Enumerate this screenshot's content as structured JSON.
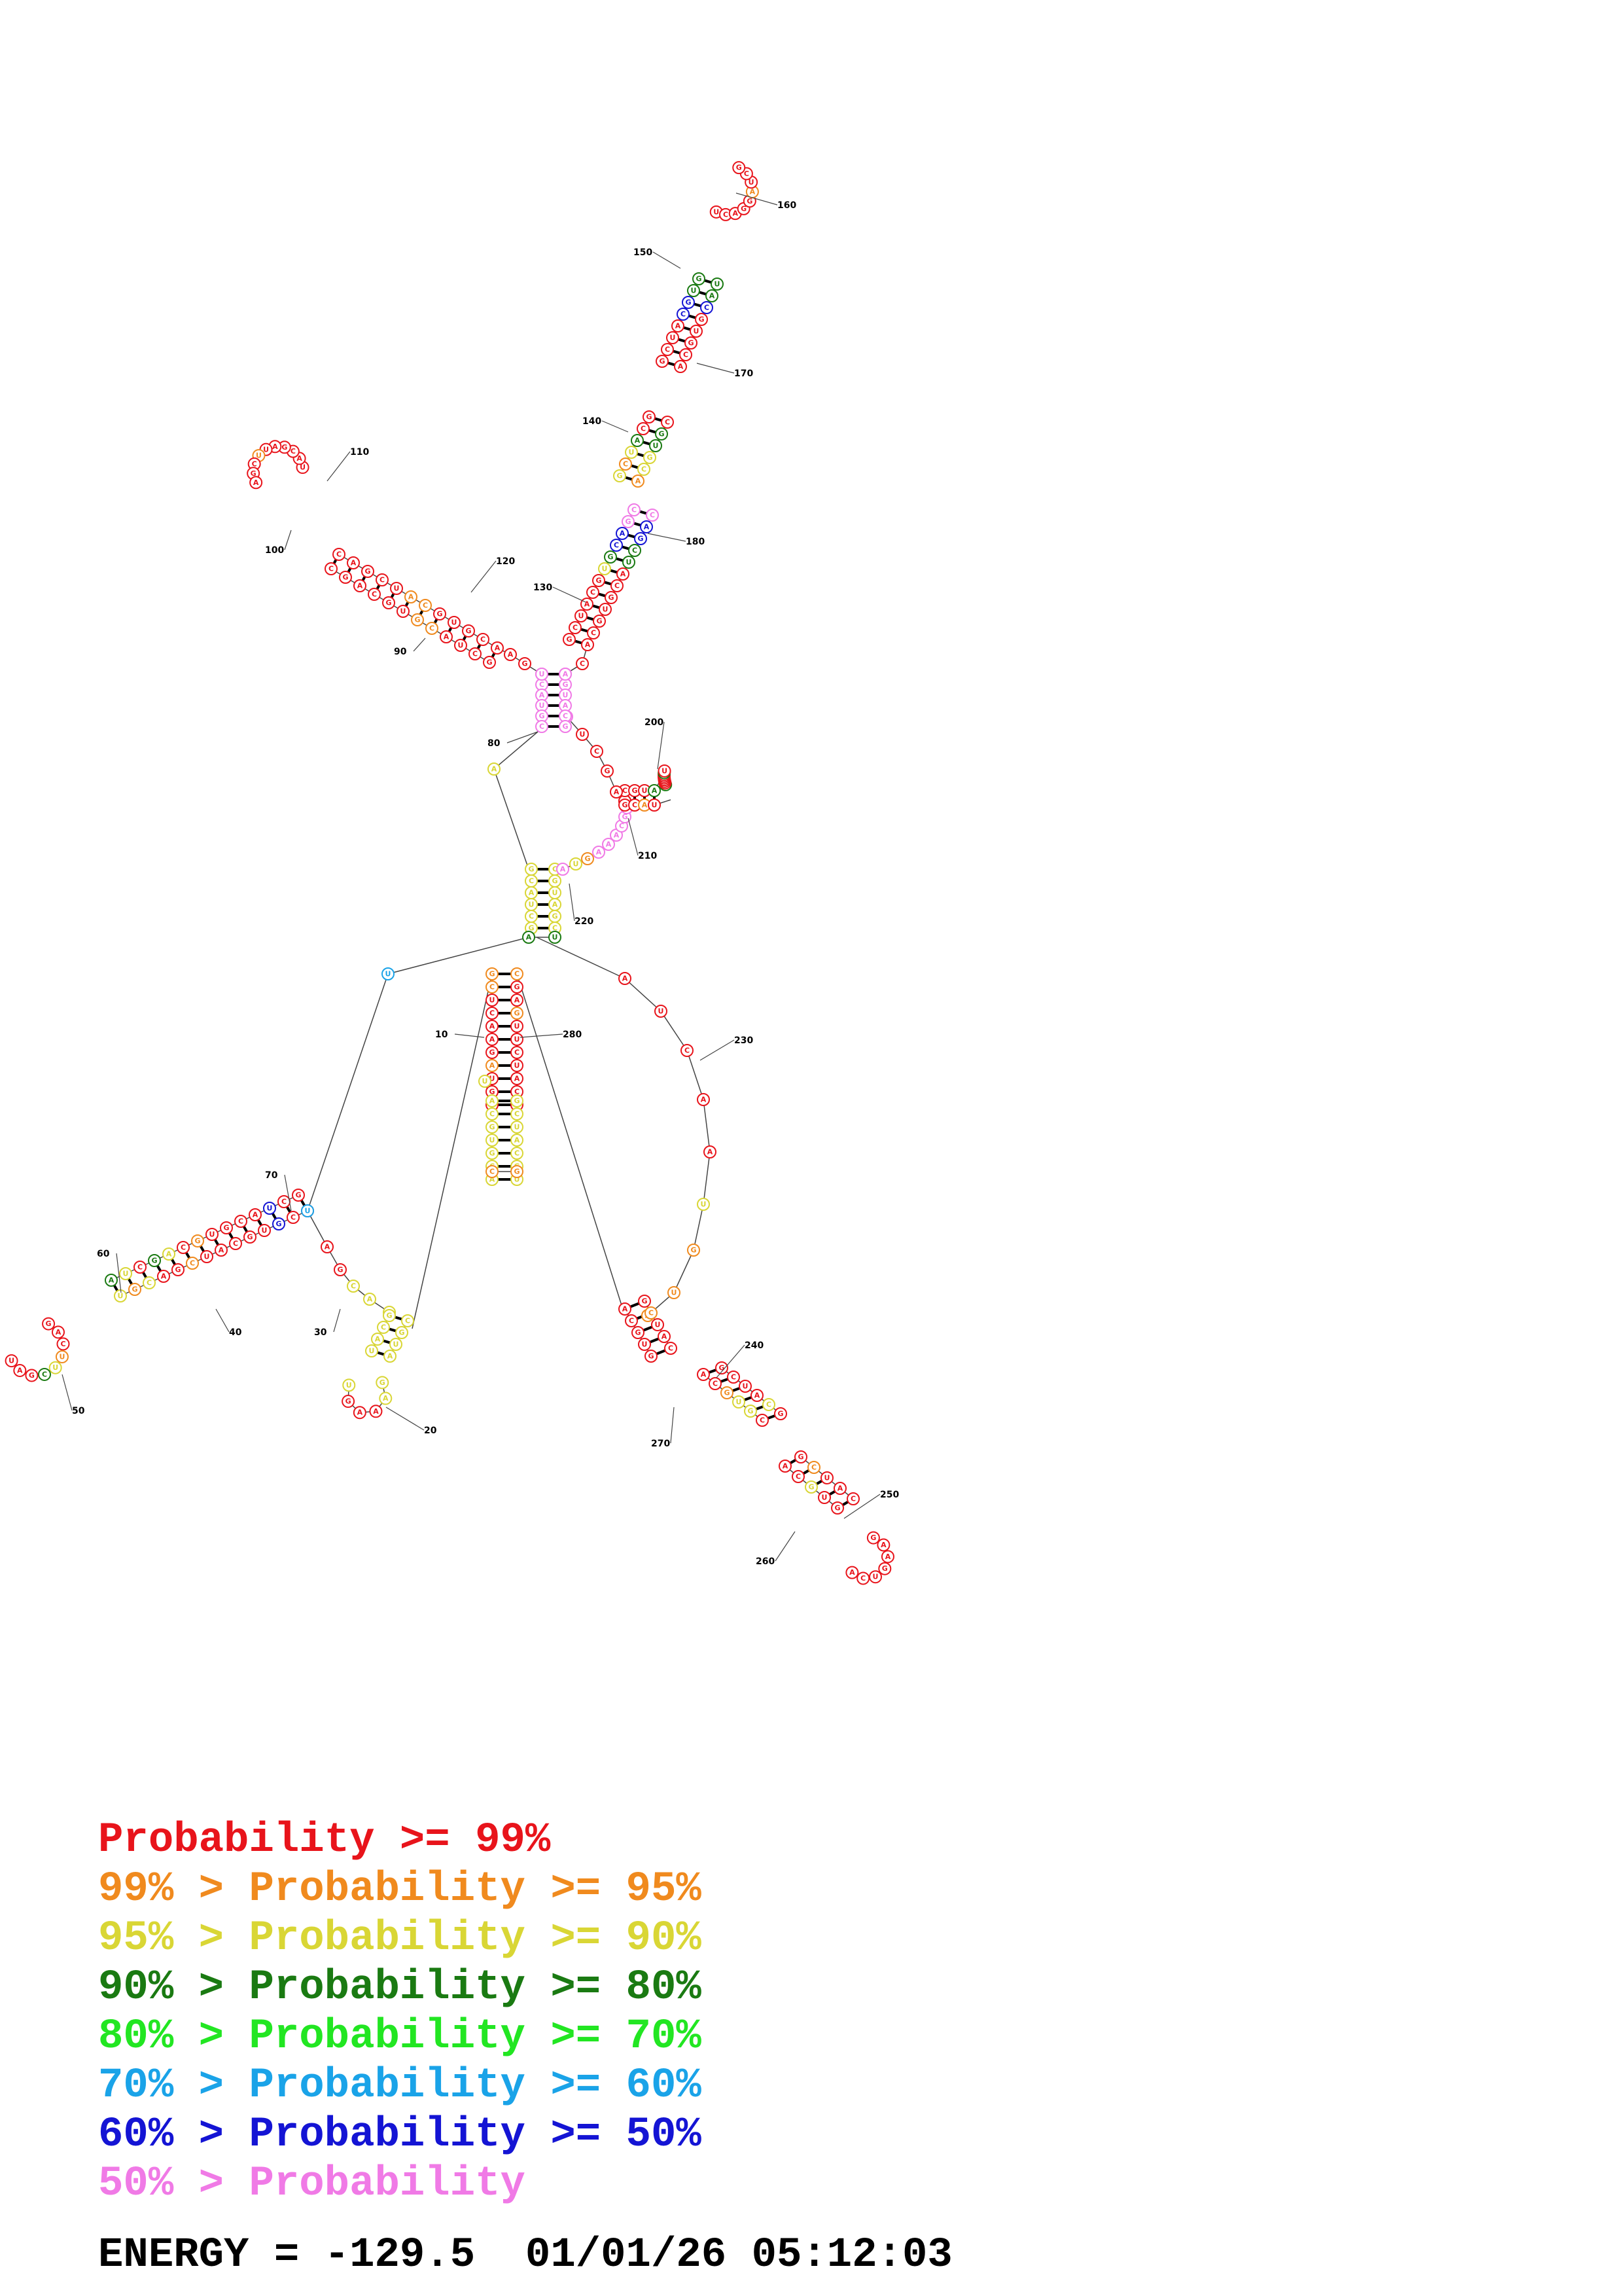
{
  "structure": {
    "position_labels": [
      "10",
      "20",
      "30",
      "40",
      "50",
      "60",
      "70",
      "80",
      "90",
      "100",
      "110",
      "120",
      "130",
      "140",
      "150",
      "160",
      "170",
      "180",
      "200",
      "210",
      "220",
      "230",
      "240",
      "250",
      "260",
      "270",
      "280"
    ],
    "probability_colors": {
      "ge99": "#e8141b",
      "ge95": "#f08a1e",
      "ge90": "#d9d635",
      "ge80": "#1a7a12",
      "ge70": "#22e622",
      "ge60": "#1aa3e8",
      "ge50": "#1414d4",
      "lt50": "#f07ae6"
    }
  },
  "legend": [
    {
      "prefix": "",
      "label": "Probability >= 99%",
      "color": "#e8141b"
    },
    {
      "prefix": "99% > ",
      "label": "Probability >= 95%",
      "color": "#f08a1e"
    },
    {
      "prefix": "95% > ",
      "label": "Probability >= 90%",
      "color": "#d9d635"
    },
    {
      "prefix": "90% > ",
      "label": "Probability >= 80%",
      "color": "#1a7a12"
    },
    {
      "prefix": "80% > ",
      "label": "Probability >= 70%",
      "color": "#22e622"
    },
    {
      "prefix": "70% > ",
      "label": "Probability >= 60%",
      "color": "#1aa3e8"
    },
    {
      "prefix": "60% > ",
      "label": "Probability >= 50%",
      "color": "#1414d4"
    },
    {
      "prefix": "50% > ",
      "label": "Probability",
      "color": "#f07ae6"
    }
  ],
  "footer": {
    "energy_label": "ENERGY = ",
    "energy_value": "-129.5",
    "date": "01/01/26",
    "time": "05:12:03"
  }
}
